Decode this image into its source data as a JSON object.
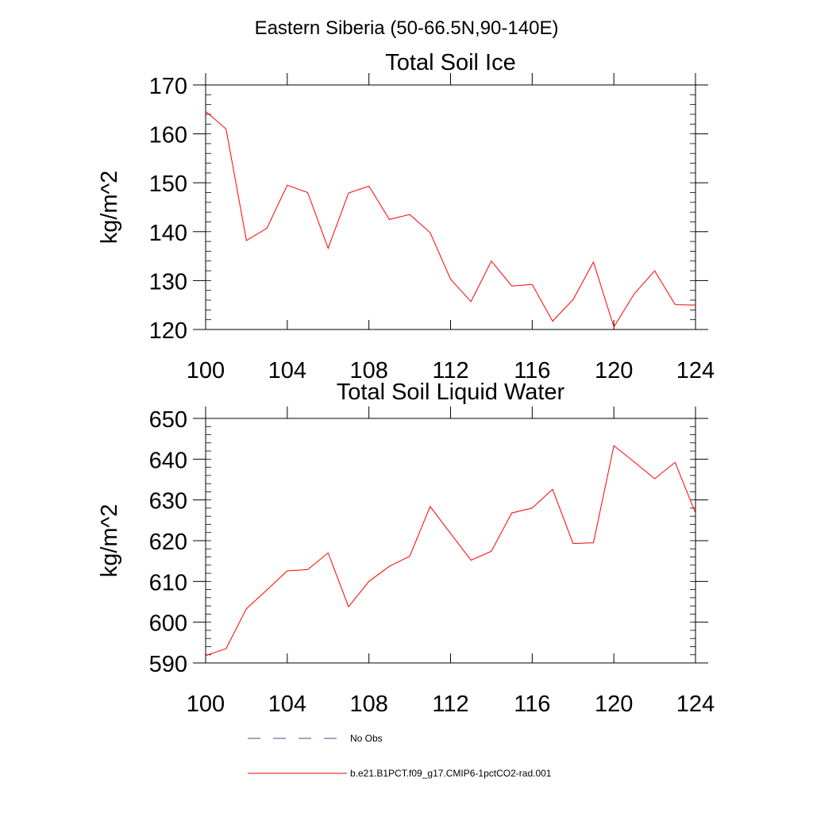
{
  "figure": {
    "suptitle": "Eastern Siberia (50-66.5N,90-140E)",
    "legend": [
      {
        "label": "No Obs",
        "color": "#4a4a8a",
        "style": "dashed"
      },
      {
        "label": "b.e21.B1PCT.f09_g17.CMIP6-1pctCO2-rad.001",
        "color": "#ff0000",
        "style": "solid"
      }
    ]
  },
  "chart_data": [
    {
      "type": "line",
      "title": "Total Soil Ice",
      "xlabel": "",
      "ylabel": "kg/m^2",
      "xlim": [
        100,
        124
      ],
      "ylim": [
        120,
        170
      ],
      "xticks": [
        100,
        104,
        108,
        112,
        116,
        120,
        124
      ],
      "yticks": [
        120,
        130,
        140,
        150,
        160,
        170
      ],
      "grid": false,
      "series": [
        {
          "color": "#ff0000",
          "x": [
            100,
            101,
            102,
            103,
            104,
            105,
            106,
            107,
            108,
            109,
            110,
            111,
            112,
            113,
            114,
            115,
            116,
            117,
            118,
            119,
            120,
            121,
            122,
            123,
            124
          ],
          "y": [
            164.6,
            161.0,
            138.2,
            140.7,
            149.5,
            148.0,
            136.6,
            147.9,
            149.3,
            142.5,
            143.5,
            139.8,
            130.3,
            125.7,
            134.0,
            128.9,
            129.2,
            121.7,
            126.1,
            133.8,
            120.5,
            127.3,
            132.0,
            125.1,
            125.0
          ]
        }
      ]
    },
    {
      "type": "line",
      "title": "Total Soil Liquid Water",
      "xlabel": "",
      "ylabel": "kg/m^2",
      "xlim": [
        100,
        124
      ],
      "ylim": [
        590,
        650
      ],
      "xticks": [
        100,
        104,
        108,
        112,
        116,
        120,
        124
      ],
      "yticks": [
        590,
        600,
        610,
        620,
        630,
        640,
        650
      ],
      "grid": false,
      "series": [
        {
          "color": "#ff0000",
          "x": [
            100,
            101,
            102,
            103,
            104,
            105,
            106,
            107,
            108,
            109,
            110,
            111,
            112,
            113,
            114,
            115,
            116,
            117,
            118,
            119,
            120,
            121,
            122,
            123,
            124
          ],
          "y": [
            591.8,
            593.5,
            603.3,
            607.9,
            612.6,
            612.9,
            617.0,
            603.8,
            610.0,
            613.7,
            616.2,
            628.4,
            621.8,
            615.2,
            617.4,
            626.8,
            628.0,
            632.6,
            619.3,
            619.5,
            643.3,
            639.3,
            635.2,
            639.2,
            626.8
          ]
        }
      ]
    }
  ]
}
